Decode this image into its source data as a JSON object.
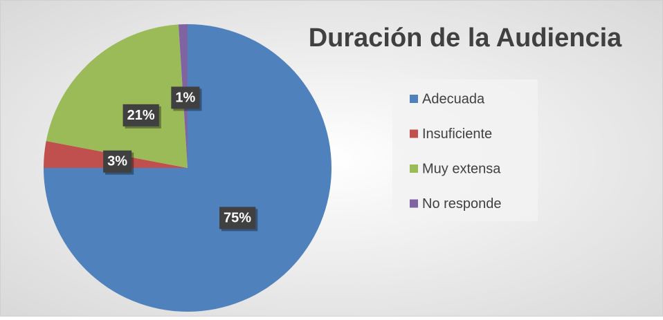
{
  "chart_data": {
    "type": "pie",
    "title": "Duración de la Audiencia",
    "categories": [
      "Adecuada",
      "Insuficiente",
      "Muy extensa",
      "No responde"
    ],
    "values": [
      75,
      3,
      21,
      1
    ],
    "value_labels": [
      "75%",
      "3%",
      "21%",
      "1%"
    ],
    "colors": [
      "#4f81bd",
      "#c0504d",
      "#9bbb59",
      "#8064a2"
    ],
    "legend": "right"
  }
}
